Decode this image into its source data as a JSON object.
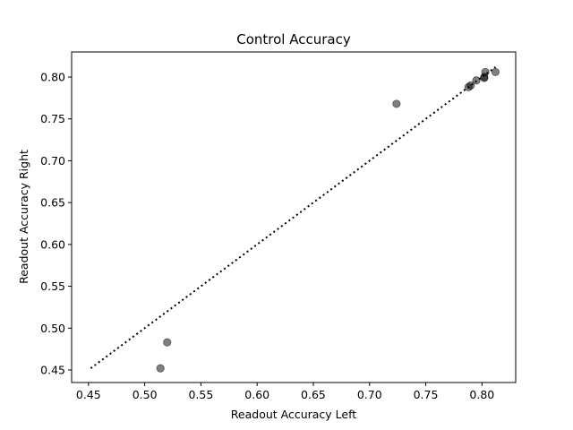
{
  "chart_data": {
    "type": "scatter",
    "title": "Control Accuracy",
    "xlabel": "Readout Accuracy Left",
    "ylabel": "Readout Accuracy Right",
    "xlim": [
      0.435,
      0.83
    ],
    "ylim": [
      0.435,
      0.83
    ],
    "x_ticks": [
      0.45,
      0.5,
      0.55,
      0.6,
      0.65,
      0.7,
      0.75,
      0.8
    ],
    "x_tick_labels": [
      "0.45",
      "0.50",
      "0.55",
      "0.60",
      "0.65",
      "0.70",
      "0.75",
      "0.80"
    ],
    "y_ticks": [
      0.45,
      0.5,
      0.55,
      0.6,
      0.65,
      0.7,
      0.75,
      0.8
    ],
    "y_tick_labels": [
      "0.45",
      "0.50",
      "0.55",
      "0.60",
      "0.65",
      "0.70",
      "0.75",
      "0.80"
    ],
    "grid": false,
    "points": [
      {
        "x": 0.514,
        "y": 0.452
      },
      {
        "x": 0.52,
        "y": 0.483
      },
      {
        "x": 0.724,
        "y": 0.768
      },
      {
        "x": 0.788,
        "y": 0.788
      },
      {
        "x": 0.79,
        "y": 0.79
      },
      {
        "x": 0.795,
        "y": 0.796
      },
      {
        "x": 0.802,
        "y": 0.799
      },
      {
        "x": 0.802,
        "y": 0.8
      },
      {
        "x": 0.803,
        "y": 0.806
      },
      {
        "x": 0.812,
        "y": 0.806
      }
    ],
    "point_color": "#000000",
    "point_alpha": 0.5,
    "reference_line": {
      "style": "dotted",
      "color": "#000000",
      "from": [
        0.452,
        0.452
      ],
      "to": [
        0.812,
        0.812
      ]
    }
  }
}
